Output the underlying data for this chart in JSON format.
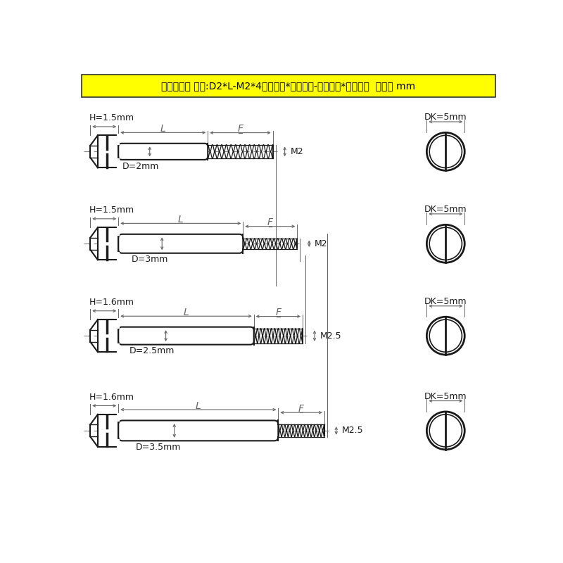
{
  "title_text": "尺寸说明： 例如:D2*L-M2*4光杆直径*光杆长度-螺牙直径*螺牙长度  单位： mm",
  "title_bg": "#FFFF00",
  "title_color": "#000000",
  "bg_color": "#FFFFFF",
  "line_color": "#1a1a1a",
  "dim_color": "#666666",
  "dash_color": "#888888",
  "bolts": [
    {
      "H": "1.5mm",
      "D": "2mm",
      "M": "M2",
      "DK": "5mm"
    },
    {
      "H": "1.5mm",
      "D": "3mm",
      "M": "M2",
      "DK": "5mm"
    },
    {
      "H": "1.6mm",
      "D": "2.5mm",
      "M": "M2.5",
      "DK": "5mm"
    },
    {
      "H": "1.6mm",
      "D": "3.5mm",
      "M": "M2.5",
      "DK": "5mm"
    }
  ]
}
